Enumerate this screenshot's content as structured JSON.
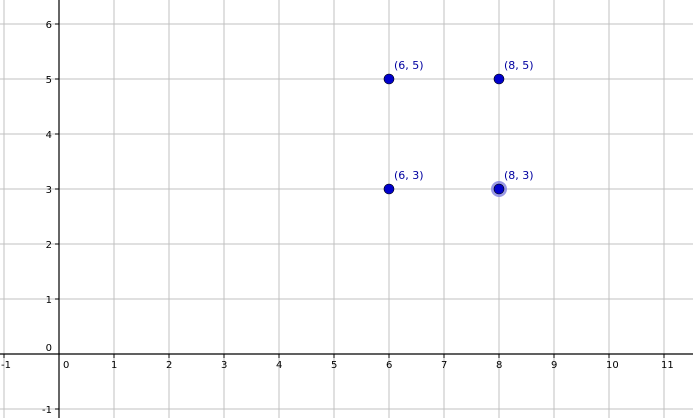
{
  "graphics_view": {
    "x_ticks": [
      "-1",
      "0",
      "1",
      "2",
      "3",
      "4",
      "5",
      "6",
      "7",
      "8",
      "9",
      "10",
      "11"
    ],
    "x_tick_values": [
      -1,
      0,
      1,
      2,
      3,
      4,
      5,
      6,
      7,
      8,
      9,
      10,
      11
    ],
    "y_ticks": [
      "-1",
      "0",
      "1",
      "2",
      "3",
      "4",
      "5",
      "6"
    ],
    "y_tick_values": [
      -1,
      0,
      1,
      2,
      3,
      4,
      5,
      6
    ],
    "grid": true,
    "point_color": "#0000cc",
    "selected_halo_color": "#8080e0",
    "points": [
      {
        "x": 6,
        "y": 5,
        "label": "(6, 5)",
        "selected": false
      },
      {
        "x": 8,
        "y": 5,
        "label": "(8, 5)",
        "selected": false
      },
      {
        "x": 6,
        "y": 3,
        "label": "(6, 3)",
        "selected": false
      },
      {
        "x": 8,
        "y": 3,
        "label": "(8, 3)",
        "selected": true
      }
    ]
  }
}
